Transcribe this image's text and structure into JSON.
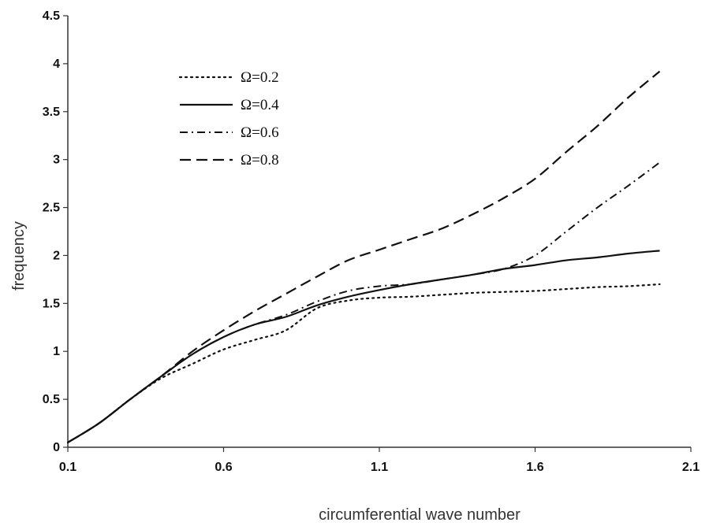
{
  "chart_data": {
    "type": "line",
    "title": "",
    "xlabel": "circumferential wave number",
    "ylabel": "frequency",
    "xlim": [
      0.1,
      2.1
    ],
    "ylim": [
      0,
      4.5
    ],
    "x_ticks": [
      "0.1",
      "0.6",
      "1.1",
      "1.6",
      "2.1"
    ],
    "y_ticks": [
      "0",
      "0.5",
      "1",
      "1.5",
      "2",
      "2.5",
      "3",
      "3.5",
      "4",
      "4.5"
    ],
    "grid": false,
    "legend_position": "top-left",
    "series": [
      {
        "name": "Ω=0.2",
        "style": "dotted",
        "x": [
          0.1,
          0.2,
          0.3,
          0.4,
          0.5,
          0.6,
          0.7,
          0.8,
          0.9,
          1.0,
          1.1,
          1.2,
          1.3,
          1.4,
          1.5,
          1.6,
          1.7,
          1.8,
          1.9,
          2.0
        ],
        "y": [
          0.05,
          0.25,
          0.5,
          0.72,
          0.87,
          1.02,
          1.12,
          1.22,
          1.45,
          1.53,
          1.56,
          1.57,
          1.59,
          1.61,
          1.62,
          1.63,
          1.65,
          1.67,
          1.68,
          1.7
        ]
      },
      {
        "name": "Ω=0.4",
        "style": "solid",
        "x": [
          0.1,
          0.2,
          0.3,
          0.4,
          0.5,
          0.6,
          0.7,
          0.8,
          0.9,
          1.0,
          1.1,
          1.2,
          1.3,
          1.4,
          1.5,
          1.6,
          1.7,
          1.8,
          1.9,
          2.0
        ],
        "y": [
          0.05,
          0.25,
          0.5,
          0.74,
          0.97,
          1.15,
          1.28,
          1.36,
          1.48,
          1.57,
          1.64,
          1.7,
          1.75,
          1.8,
          1.86,
          1.9,
          1.95,
          1.98,
          2.02,
          2.05
        ]
      },
      {
        "name": "Ω=0.6",
        "style": "dash-dot",
        "x": [
          0.1,
          0.2,
          0.3,
          0.4,
          0.5,
          0.6,
          0.7,
          0.8,
          0.9,
          1.0,
          1.1,
          1.2,
          1.3,
          1.4,
          1.5,
          1.6,
          1.7,
          1.8,
          1.9,
          2.0
        ],
        "y": [
          0.05,
          0.25,
          0.5,
          0.74,
          0.97,
          1.15,
          1.28,
          1.38,
          1.52,
          1.63,
          1.68,
          1.7,
          1.75,
          1.8,
          1.86,
          2.0,
          2.25,
          2.5,
          2.73,
          2.97
        ]
      },
      {
        "name": "Ω=0.8",
        "style": "dashed",
        "x": [
          0.1,
          0.2,
          0.3,
          0.4,
          0.5,
          0.6,
          0.7,
          0.8,
          0.9,
          1.0,
          1.1,
          1.2,
          1.3,
          1.4,
          1.5,
          1.6,
          1.7,
          1.8,
          1.9,
          2.0
        ],
        "y": [
          0.05,
          0.25,
          0.5,
          0.74,
          1.0,
          1.22,
          1.42,
          1.6,
          1.78,
          1.95,
          2.06,
          2.17,
          2.28,
          2.43,
          2.6,
          2.8,
          3.08,
          3.35,
          3.65,
          3.92
        ]
      }
    ]
  }
}
